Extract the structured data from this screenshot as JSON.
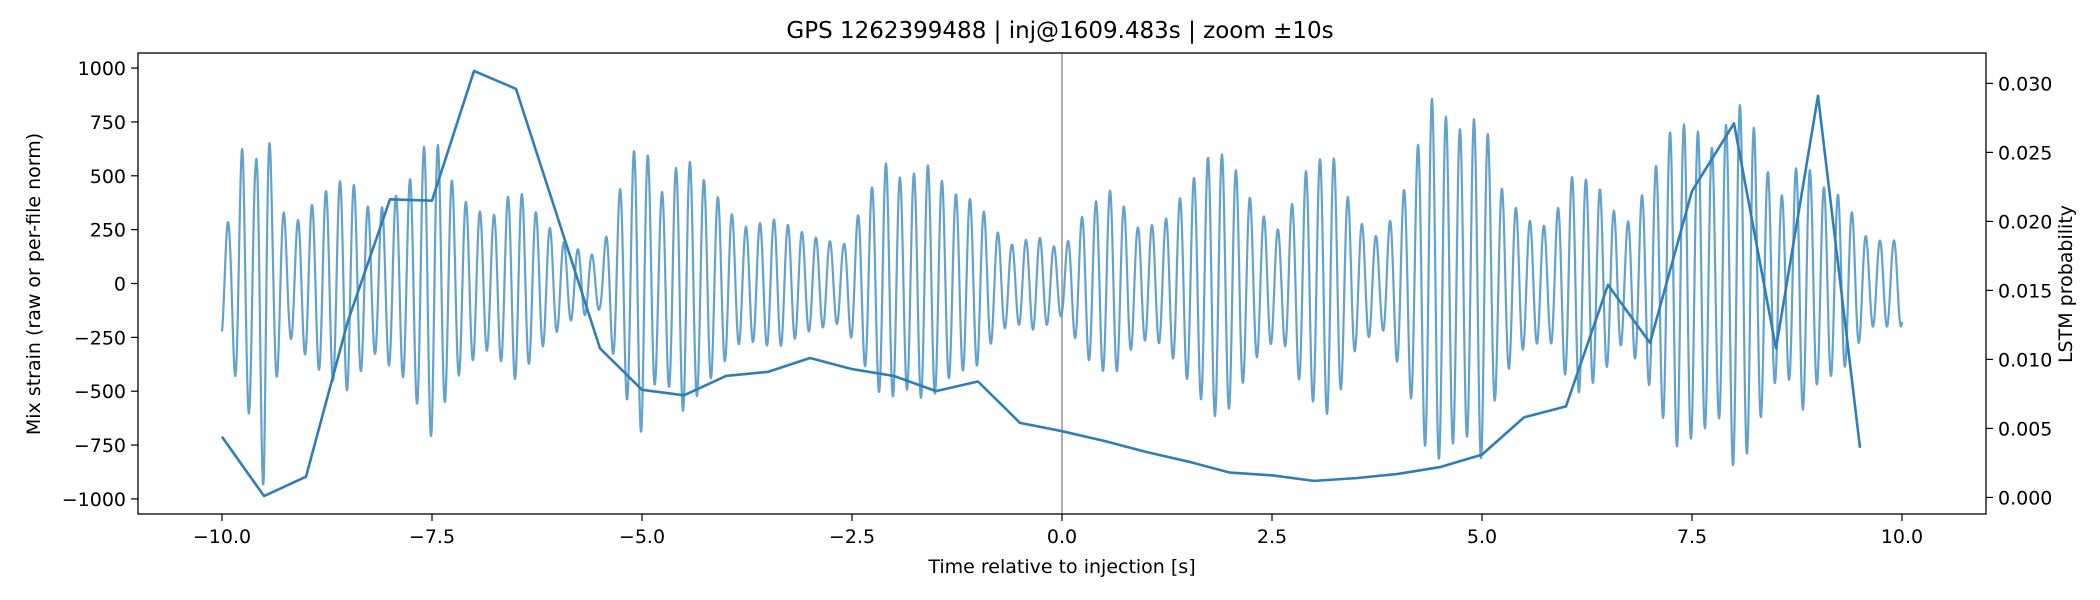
{
  "chart_data": {
    "type": "line",
    "title": "GPS 1262399488 | inj@1609.483s | zoom ±10s",
    "xlabel": "Time relative to injection [s]",
    "ylabel_left": "Mix strain (raw or per-file norm)",
    "ylabel_right": "LSTM probability",
    "xlim": [
      -11,
      11
    ],
    "ylim_left": [
      -1070,
      1070
    ],
    "ylim_right": [
      -0.0012,
      0.0322
    ],
    "xticks": [
      -10,
      -7.5,
      -5,
      -2.5,
      0,
      2.5,
      5,
      7.5,
      10
    ],
    "xtick_labels": [
      "−10.0",
      "−7.5",
      "−5.0",
      "−2.5",
      "0.0",
      "2.5",
      "5.0",
      "7.5",
      "10.0"
    ],
    "yticks_left": [
      1000,
      750,
      500,
      250,
      0,
      -250,
      -500,
      -750,
      -1000
    ],
    "ytick_labels_left": [
      "1000",
      "750",
      "500",
      "250",
      "0",
      "−250",
      "−500",
      "−750",
      "−1000"
    ],
    "yticks_right": [
      0.03,
      0.025,
      0.02,
      0.015,
      0.01,
      0.005,
      0
    ],
    "ytick_labels_right": [
      "0.030",
      "0.025",
      "0.020",
      "0.015",
      "0.010",
      "0.005",
      "0.000"
    ],
    "injection_marker_x": 0,
    "colors": {
      "strain": "#5b9dca",
      "probability": "#2f7eb8",
      "marker": "#b0b0b0"
    },
    "series": [
      {
        "name": "Mix strain",
        "axis": "left",
        "x_start": -10,
        "x_end": 10,
        "carrier_cycles_per_s": 6,
        "envelope_t": [
          -10,
          -9.9,
          -9.75,
          -9.6,
          -9.5,
          -9.4,
          -9.2,
          -8.8,
          -8.5,
          -8.2,
          -7.8,
          -7.5,
          -7.3,
          -7.1,
          -6.8,
          -6.5,
          -6.2,
          -5.9,
          -5.5,
          -5.2,
          -5,
          -4.8,
          -4.5,
          -4.2,
          -3.8,
          -3.4,
          -3,
          -2.6,
          -2.3,
          -2.1,
          -1.9,
          -1.6,
          -1.3,
          -1,
          -0.8,
          -0.6,
          -0.3,
          0,
          0.3,
          0.6,
          0.9,
          1.2,
          1.5,
          1.8,
          2,
          2.3,
          2.6,
          2.9,
          3.2,
          3.5,
          3.8,
          4.1,
          4.4,
          4.6,
          4.8,
          5,
          5.2,
          5.5,
          5.8,
          6.1,
          6.4,
          6.7,
          7,
          7.3,
          7.6,
          7.8,
          8,
          8.2,
          8.4,
          8.6,
          8.8,
          9,
          9.3,
          9.6,
          10
        ],
        "envelope_amp": [
          250,
          300,
          650,
          550,
          980,
          500,
          250,
          420,
          500,
          320,
          450,
          720,
          500,
          380,
          300,
          450,
          300,
          180,
          120,
          520,
          700,
          400,
          600,
          450,
          260,
          300,
          220,
          180,
          420,
          560,
          480,
          550,
          420,
          380,
          250,
          180,
          220,
          150,
          350,
          440,
          260,
          280,
          450,
          620,
          580,
          350,
          240,
          520,
          620,
          300,
          200,
          460,
          860,
          760,
          700,
          820,
          460,
          300,
          260,
          520,
          440,
          260,
          480,
          760,
          700,
          600,
          860,
          770,
          520,
          390,
          600,
          460,
          400,
          200,
          200
        ]
      },
      {
        "name": "LSTM probability",
        "axis": "right",
        "x": [
          -10,
          -9.5,
          -9,
          -8.5,
          -8,
          -7.5,
          -7,
          -6.5,
          -6,
          -5.5,
          -5,
          -4.5,
          -4,
          -3.5,
          -3,
          -2.5,
          -2,
          -1.5,
          -1,
          -0.5,
          0,
          0.5,
          1,
          1.5,
          2,
          2.5,
          3,
          3.5,
          4,
          4.5,
          5,
          5.5,
          6,
          6.5,
          7,
          7.5,
          8,
          8.5,
          9,
          9.5
        ],
        "y": [
          0.0044,
          0.0001,
          0.0015,
          0.0128,
          0.0216,
          0.0215,
          0.0309,
          0.0296,
          0.0202,
          0.0108,
          0.0078,
          0.0074,
          0.0088,
          0.0091,
          0.0101,
          0.0093,
          0.0088,
          0.0077,
          0.0084,
          0.0054,
          0.0048,
          0.0041,
          0.0033,
          0.0026,
          0.0018,
          0.0016,
          0.0012,
          0.0014,
          0.0017,
          0.0022,
          0.0031,
          0.0058,
          0.0066,
          0.0154,
          0.0112,
          0.0222,
          0.0271,
          0.0108,
          0.0291,
          0.0036
        ]
      }
    ]
  }
}
